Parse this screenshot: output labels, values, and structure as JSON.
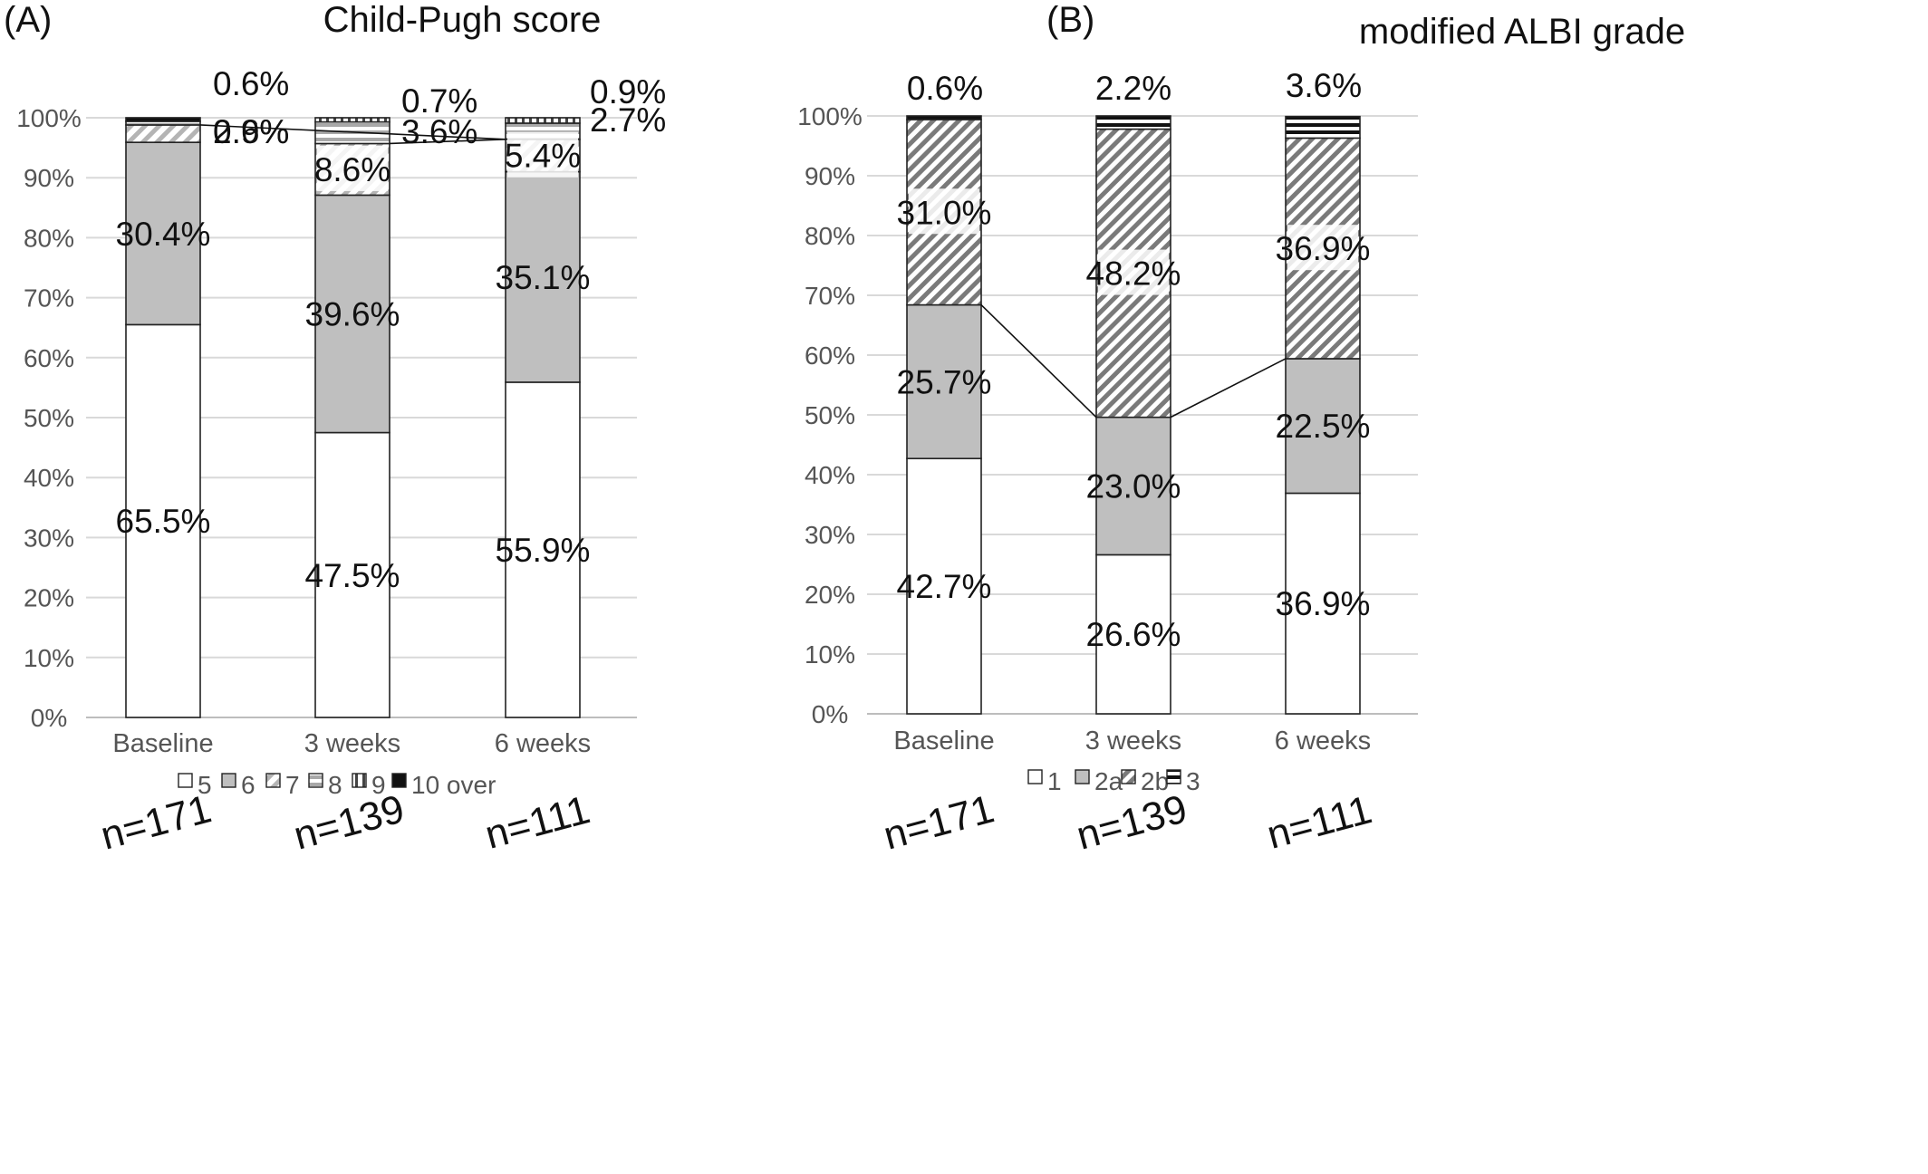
{
  "charts": [
    {
      "panel_label": "(A)",
      "chart_data": {
        "type": "bar",
        "stacked": true,
        "title": "Child-Pugh score",
        "xlabel": "",
        "ylabel": "",
        "ylim": [
          0,
          100
        ],
        "yticks": [
          "0%",
          "10%",
          "20%",
          "30%",
          "40%",
          "50%",
          "60%",
          "70%",
          "80%",
          "90%",
          "100%"
        ],
        "categories": [
          "Baseline",
          "3 weeks",
          "6 weeks"
        ],
        "series": [
          {
            "name": "5",
            "values": [
              65.5,
              47.5,
              55.9
            ],
            "labels": [
              "65.5%",
              "47.5%",
              "55.9%"
            ],
            "pattern": "white"
          },
          {
            "name": "6",
            "values": [
              30.4,
              39.6,
              35.1
            ],
            "labels": [
              "30.4%",
              "39.6%",
              "35.1%"
            ],
            "pattern": "gray"
          },
          {
            "name": "7",
            "values": [
              2.9,
              8.6,
              5.4
            ],
            "labels": [
              "2.9%",
              "8.6%",
              "5.4%"
            ],
            "pattern": "diag"
          },
          {
            "name": "8",
            "values": [
              0.6,
              3.6,
              2.7
            ],
            "labels": [
              "0.6%",
              "3.6%",
              "2.7%"
            ],
            "pattern": "hline"
          },
          {
            "name": "9",
            "values": [
              0,
              0.7,
              0.9
            ],
            "labels": [
              "",
              "0.7%",
              "0.9%"
            ],
            "pattern": "vline"
          },
          {
            "name": "10 over",
            "values": [
              0.6,
              0,
              0
            ],
            "labels": [
              "0.6%",
              "",
              ""
            ],
            "pattern": "black"
          }
        ],
        "grid": true,
        "legend": "bottom",
        "annotations": [
          "n=171",
          "n=139",
          "n=111"
        ]
      }
    },
    {
      "panel_label": "(B)",
      "chart_data": {
        "type": "bar",
        "stacked": true,
        "title": "modified ALBI grade",
        "xlabel": "",
        "ylabel": "",
        "ylim": [
          0,
          100
        ],
        "yticks": [
          "0%",
          "10%",
          "20%",
          "30%",
          "40%",
          "50%",
          "60%",
          "70%",
          "80%",
          "90%",
          "100%"
        ],
        "categories": [
          "Baseline",
          "3 weeks",
          "6 weeks"
        ],
        "series": [
          {
            "name": "1",
            "values": [
              42.7,
              26.6,
              36.9
            ],
            "labels": [
              "42.7%",
              "26.6%",
              "36.9%"
            ],
            "pattern": "white"
          },
          {
            "name": "2a",
            "values": [
              25.7,
              23.0,
              22.5
            ],
            "labels": [
              "25.7%",
              "23.0%",
              "22.5%"
            ],
            "pattern": "gray"
          },
          {
            "name": "2b",
            "values": [
              31.0,
              48.2,
              36.9
            ],
            "labels": [
              "31.0%",
              "48.2%",
              "36.9%"
            ],
            "pattern": "diag-dark"
          },
          {
            "name": "3",
            "values": [
              0.6,
              2.2,
              3.6
            ],
            "labels": [
              "0.6%",
              "2.2%",
              "3.6%"
            ],
            "pattern": "hstripe"
          }
        ],
        "grid": true,
        "legend": "bottom",
        "annotations": [
          "n=171",
          "n=139",
          "n=111"
        ]
      }
    }
  ]
}
